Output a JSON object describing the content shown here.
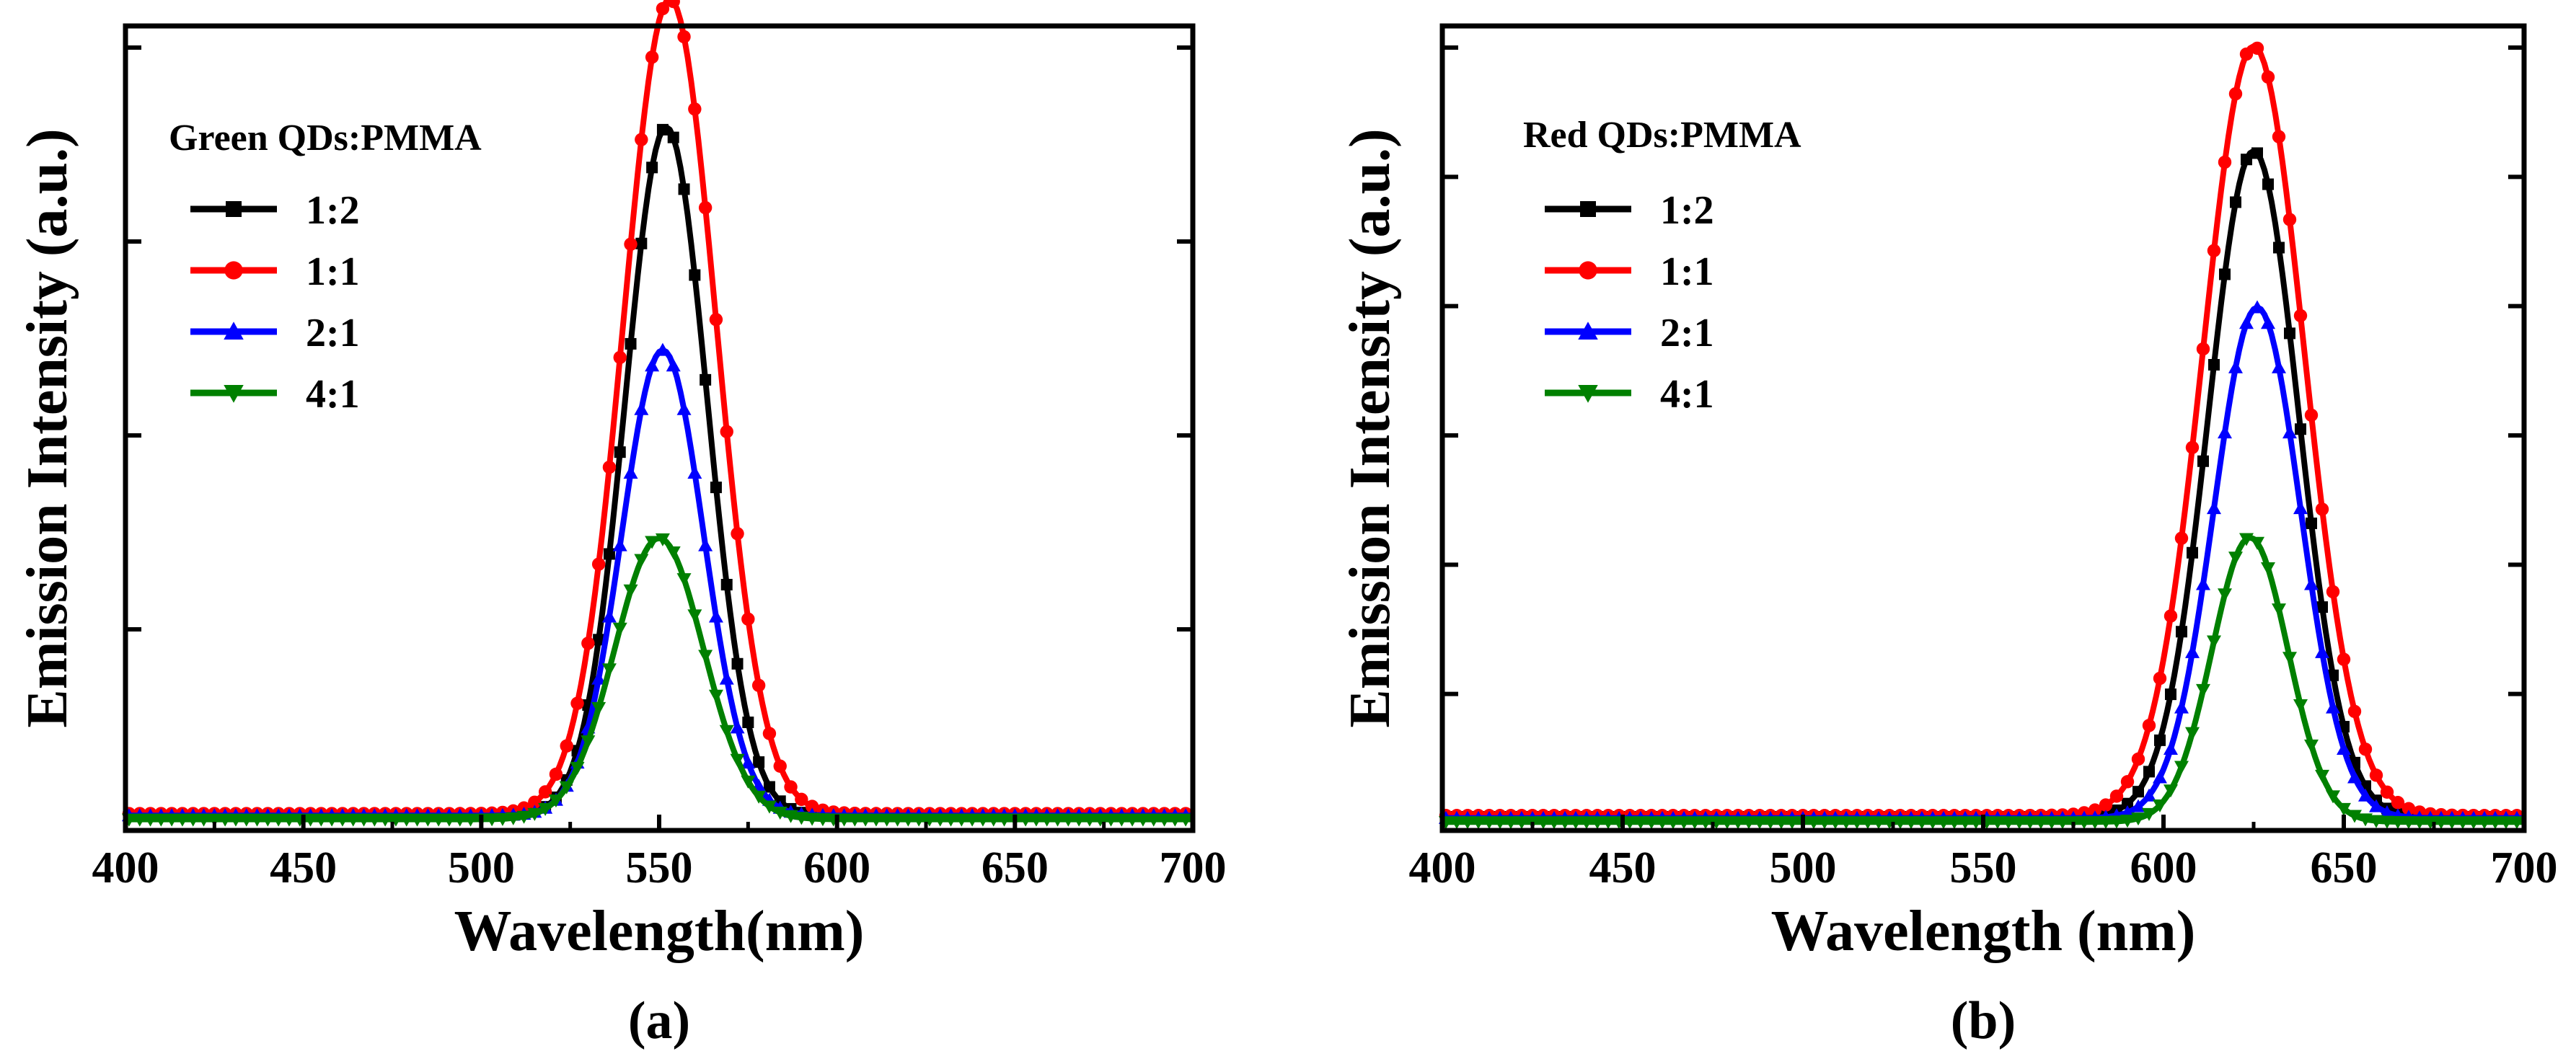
{
  "chart_data": [
    {
      "id": "a",
      "type": "line",
      "panel_label": "(a)",
      "legend_title": "Green QDs:PMMA",
      "xlabel": "Wavelength(nm)",
      "ylabel": "Emission Intensity (a.u.)",
      "xlim": [
        400,
        700
      ],
      "ylim": [
        0,
        4.0
      ],
      "y_minor_ticks": [
        1,
        2,
        3,
        4
      ],
      "xticks": [
        400,
        450,
        500,
        550,
        600,
        650,
        700
      ],
      "xtick_labels": [
        "400",
        "450",
        "500",
        "550",
        "600",
        "650",
        "700"
      ],
      "legend_position": "top-left",
      "series": [
        {
          "name": "1:2",
          "color": "#000000",
          "marker": "square",
          "peak": 552,
          "amplitude": 3.55,
          "sigma": 11.5,
          "base": 0.04
        },
        {
          "name": "1:1",
          "color": "#ff0000",
          "marker": "circle",
          "peak": 553,
          "amplitude": 4.2,
          "sigma": 13.0,
          "base": 0.05
        },
        {
          "name": "2:1",
          "color": "#0000ff",
          "marker": "triangle-up",
          "peak": 551,
          "amplitude": 2.4,
          "sigma": 11.5,
          "base": 0.04
        },
        {
          "name": "4:1",
          "color": "#008000",
          "marker": "triangle-down",
          "peak": 550,
          "amplitude": 1.45,
          "sigma": 12.5,
          "base": 0.02
        }
      ]
    },
    {
      "id": "b",
      "type": "line",
      "panel_label": "(b)",
      "legend_title": "Red QDs:PMMA",
      "xlabel": "Wavelength (nm)",
      "ylabel": "Emission Intensity (a.u.)",
      "xlim": [
        400,
        700
      ],
      "ylim": [
        0,
        6.0
      ],
      "y_minor_ticks": [
        1,
        2,
        3,
        4,
        5,
        6
      ],
      "xticks": [
        400,
        450,
        500,
        550,
        600,
        650,
        700
      ],
      "xtick_labels": [
        "400",
        "450",
        "500",
        "550",
        "600",
        "650",
        "700"
      ],
      "legend_position": "top-left",
      "series": [
        {
          "name": "1:2",
          "color": "#000000",
          "marker": "square",
          "peak": 625,
          "amplitude": 5.15,
          "sigma": 12.5,
          "base": 0.05
        },
        {
          "name": "1:1",
          "color": "#ff0000",
          "marker": "circle",
          "peak": 625,
          "amplitude": 5.95,
          "sigma": 14.0,
          "base": 0.06
        },
        {
          "name": "2:1",
          "color": "#0000ff",
          "marker": "triangle-up",
          "peak": 626,
          "amplitude": 3.95,
          "sigma": 12.0,
          "base": 0.04
        },
        {
          "name": "4:1",
          "color": "#008000",
          "marker": "triangle-down",
          "peak": 624,
          "amplitude": 2.2,
          "sigma": 10.5,
          "base": 0.01
        }
      ]
    }
  ]
}
